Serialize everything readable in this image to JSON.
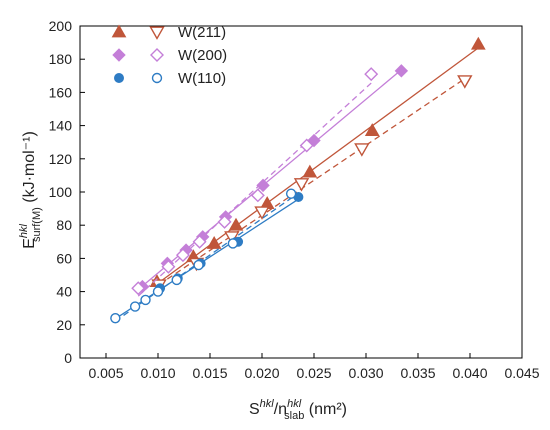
{
  "chart_data": {
    "type": "scatter",
    "xlabel": {
      "main": "S",
      "sup1": "hkl",
      "slash": "/n",
      "sup2": "hkl",
      "sub2": "slab",
      "unit": " (nm²)"
    },
    "ylabel": {
      "main": "E",
      "sup": "hkl",
      "sub": "surf(M)",
      "unit": " (kJ·mol⁻¹)"
    },
    "xlim": [
      0.0025,
      0.045
    ],
    "ylim": [
      0,
      200
    ],
    "xticks": [
      "0.005",
      "0.010",
      "0.015",
      "0.020",
      "0.025",
      "0.030",
      "0.035",
      "0.040",
      "0.045"
    ],
    "yticks": [
      "0",
      "20",
      "40",
      "60",
      "80",
      "100",
      "120",
      "140",
      "160",
      "180",
      "200"
    ],
    "grid": false,
    "legend_position": "top-left",
    "legend": [
      {
        "label": "W(211)",
        "color": "#C0563A",
        "marker": "triangle"
      },
      {
        "label": "W(200)",
        "color": "#C47FD8",
        "marker": "diamond"
      },
      {
        "label": "W(110)",
        "color": "#2E7CC4",
        "marker": "circle"
      }
    ],
    "series": [
      {
        "name": "W(211)",
        "variant": "filled",
        "marker": "triangle",
        "color": "#C0563A",
        "line": "solid",
        "x": [
          0.0099,
          0.0134,
          0.0154,
          0.0175,
          0.0205,
          0.0246,
          0.0306,
          0.0408
        ],
        "y": [
          46,
          61,
          69,
          80,
          93,
          112,
          137,
          189
        ]
      },
      {
        "name": "W(211)",
        "variant": "open",
        "marker": "triangle",
        "color": "#C0563A",
        "line": "dashed",
        "x": [
          0.0101,
          0.0137,
          0.0171,
          0.02,
          0.0238,
          0.0296,
          0.0395
        ],
        "y": [
          44,
          57,
          73,
          88,
          105,
          126,
          167
        ]
      },
      {
        "name": "W(200)",
        "variant": "filled",
        "marker": "diamond",
        "color": "#C47FD8",
        "line": "solid",
        "x": [
          0.0085,
          0.0109,
          0.0127,
          0.0143,
          0.0165,
          0.0201,
          0.025,
          0.0334
        ],
        "y": [
          43,
          57,
          65,
          73,
          85,
          104,
          131,
          173
        ]
      },
      {
        "name": "W(200)",
        "variant": "open",
        "marker": "diamond",
        "color": "#C47FD8",
        "line": "dashed",
        "x": [
          0.0081,
          0.011,
          0.0124,
          0.014,
          0.0164,
          0.0196,
          0.0243,
          0.0305
        ],
        "y": [
          42,
          55,
          62,
          70,
          82,
          98,
          128,
          171
        ]
      },
      {
        "name": "W(110)",
        "variant": "filled",
        "marker": "circle",
        "color": "#2E7CC4",
        "line": "solid",
        "x": [
          0.0059,
          0.0102,
          0.0119,
          0.0141,
          0.0177,
          0.0235
        ],
        "y": [
          24,
          42,
          48,
          57,
          70,
          97
        ]
      },
      {
        "name": "W(110)",
        "variant": "open",
        "marker": "circle",
        "color": "#2E7CC4",
        "line": "dashed",
        "x": [
          0.0059,
          0.0078,
          0.0088,
          0.01,
          0.0118,
          0.0139,
          0.0172,
          0.0228
        ],
        "y": [
          24,
          31,
          35,
          40,
          47,
          56,
          69,
          99
        ]
      }
    ]
  }
}
